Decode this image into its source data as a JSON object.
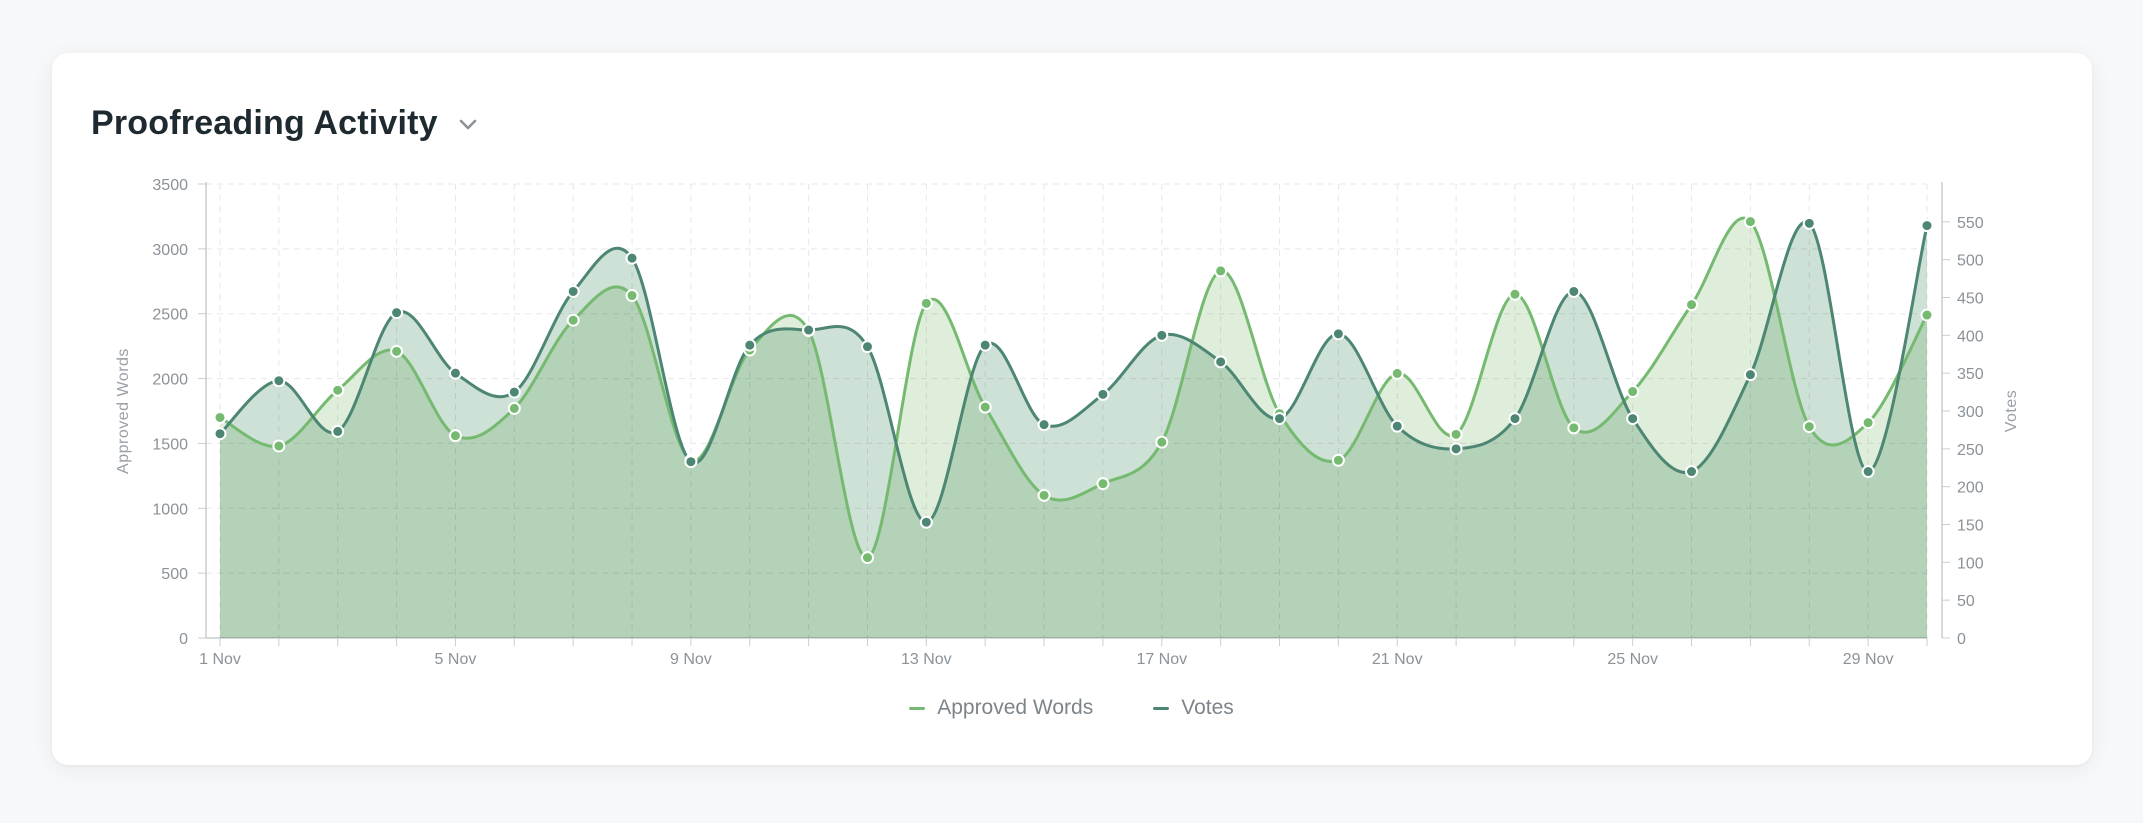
{
  "header": {
    "title": "Proofreading Activity"
  },
  "icons": {
    "dropdown": "chevron-down-icon"
  },
  "colors": {
    "approved": "#75ba70",
    "votes": "#4d8673",
    "fill_approved": "#d9ebd5",
    "fill_votes": "#c6dccf",
    "grid": "#e6e8ea"
  },
  "chart_data": {
    "type": "area",
    "xlabel": "",
    "ylabel": "Approved Words",
    "y2label": "Votes",
    "ylim": [
      0,
      3500
    ],
    "y2lim": [
      0,
      600
    ],
    "yticks": [
      0,
      500,
      1000,
      1500,
      2000,
      2500,
      3000,
      3500
    ],
    "y2ticks": [
      0,
      50,
      100,
      150,
      200,
      250,
      300,
      350,
      400,
      450,
      500,
      550
    ],
    "x": [
      1,
      2,
      3,
      4,
      5,
      6,
      7,
      8,
      9,
      10,
      11,
      12,
      13,
      14,
      15,
      16,
      17,
      18,
      19,
      20,
      21,
      22,
      23,
      24,
      25,
      26,
      27,
      28,
      29,
      30
    ],
    "xtick_labels": [
      {
        "x": 1,
        "label": "1 Nov"
      },
      {
        "x": 5,
        "label": "5 Nov"
      },
      {
        "x": 9,
        "label": "9 Nov"
      },
      {
        "x": 13,
        "label": "13 Nov"
      },
      {
        "x": 17,
        "label": "17 Nov"
      },
      {
        "x": 21,
        "label": "21 Nov"
      },
      {
        "x": 25,
        "label": "25 Nov"
      },
      {
        "x": 29,
        "label": "29 Nov"
      }
    ],
    "series": [
      {
        "name": "Approved Words",
        "axis": "left",
        "values": [
          1700,
          1480,
          1910,
          2210,
          1560,
          1770,
          2450,
          2640,
          1370,
          2220,
          2370,
          620,
          2580,
          1780,
          1100,
          1190,
          1510,
          2830,
          1730,
          1370,
          2040,
          1570,
          2650,
          1620,
          1900,
          2570,
          3210,
          1630,
          1660,
          2490
        ]
      },
      {
        "name": "Votes",
        "axis": "right",
        "values": [
          270,
          340,
          273,
          430,
          350,
          325,
          458,
          502,
          233,
          387,
          407,
          385,
          153,
          387,
          282,
          322,
          400,
          365,
          290,
          402,
          280,
          250,
          290,
          458,
          290,
          220,
          348,
          548,
          220,
          545
        ]
      }
    ],
    "legend": [
      {
        "label": "Approved Words"
      },
      {
        "label": "Votes"
      }
    ],
    "legend_position": "bottom",
    "grid": true
  }
}
